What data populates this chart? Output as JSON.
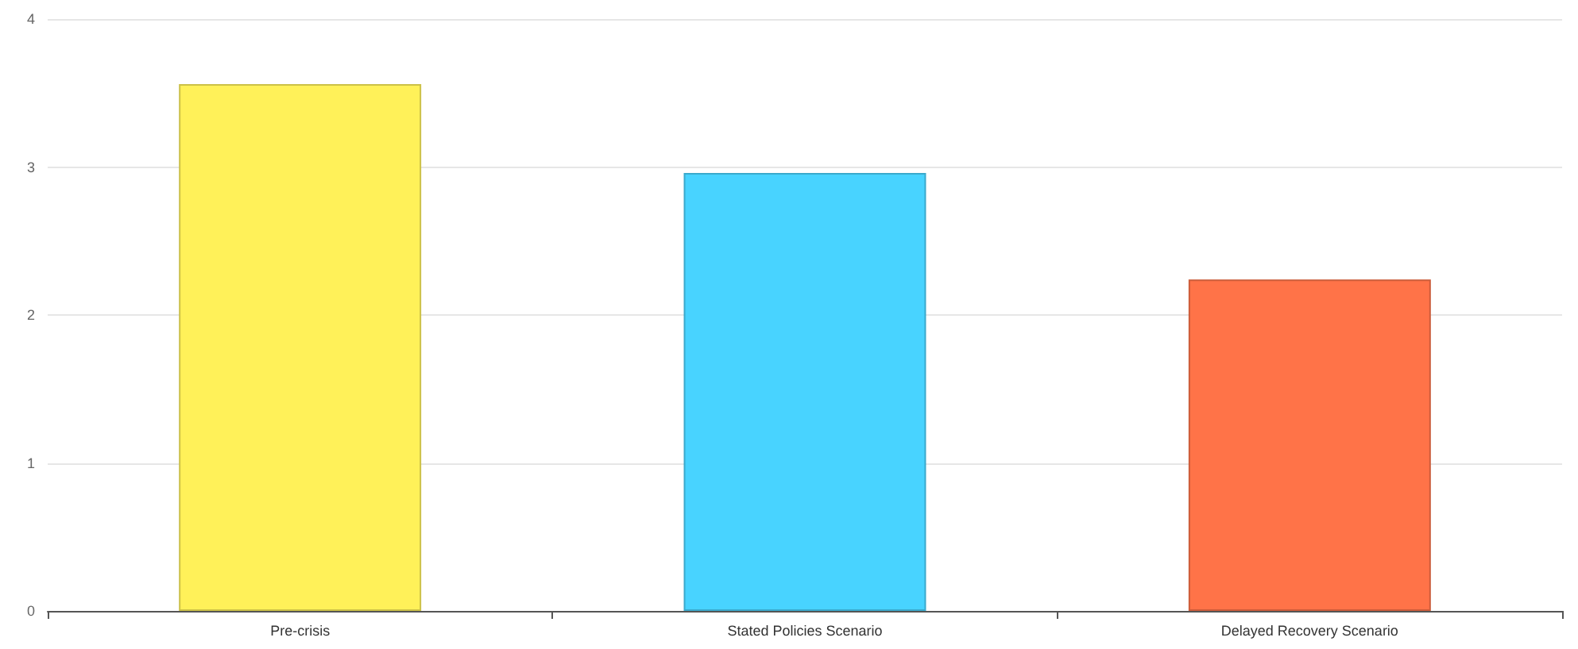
{
  "chart_data": {
    "type": "bar",
    "categories": [
      "Pre-crisis",
      "Stated Policies Scenario",
      "Delayed Recovery Scenario"
    ],
    "values": [
      3.56,
      2.96,
      2.24
    ],
    "colors": [
      "#fff159",
      "#48d3ff",
      "#ff7348"
    ],
    "ylim": [
      0,
      4
    ],
    "yticks": [
      0,
      1,
      2,
      3,
      4
    ],
    "grid": "y"
  }
}
